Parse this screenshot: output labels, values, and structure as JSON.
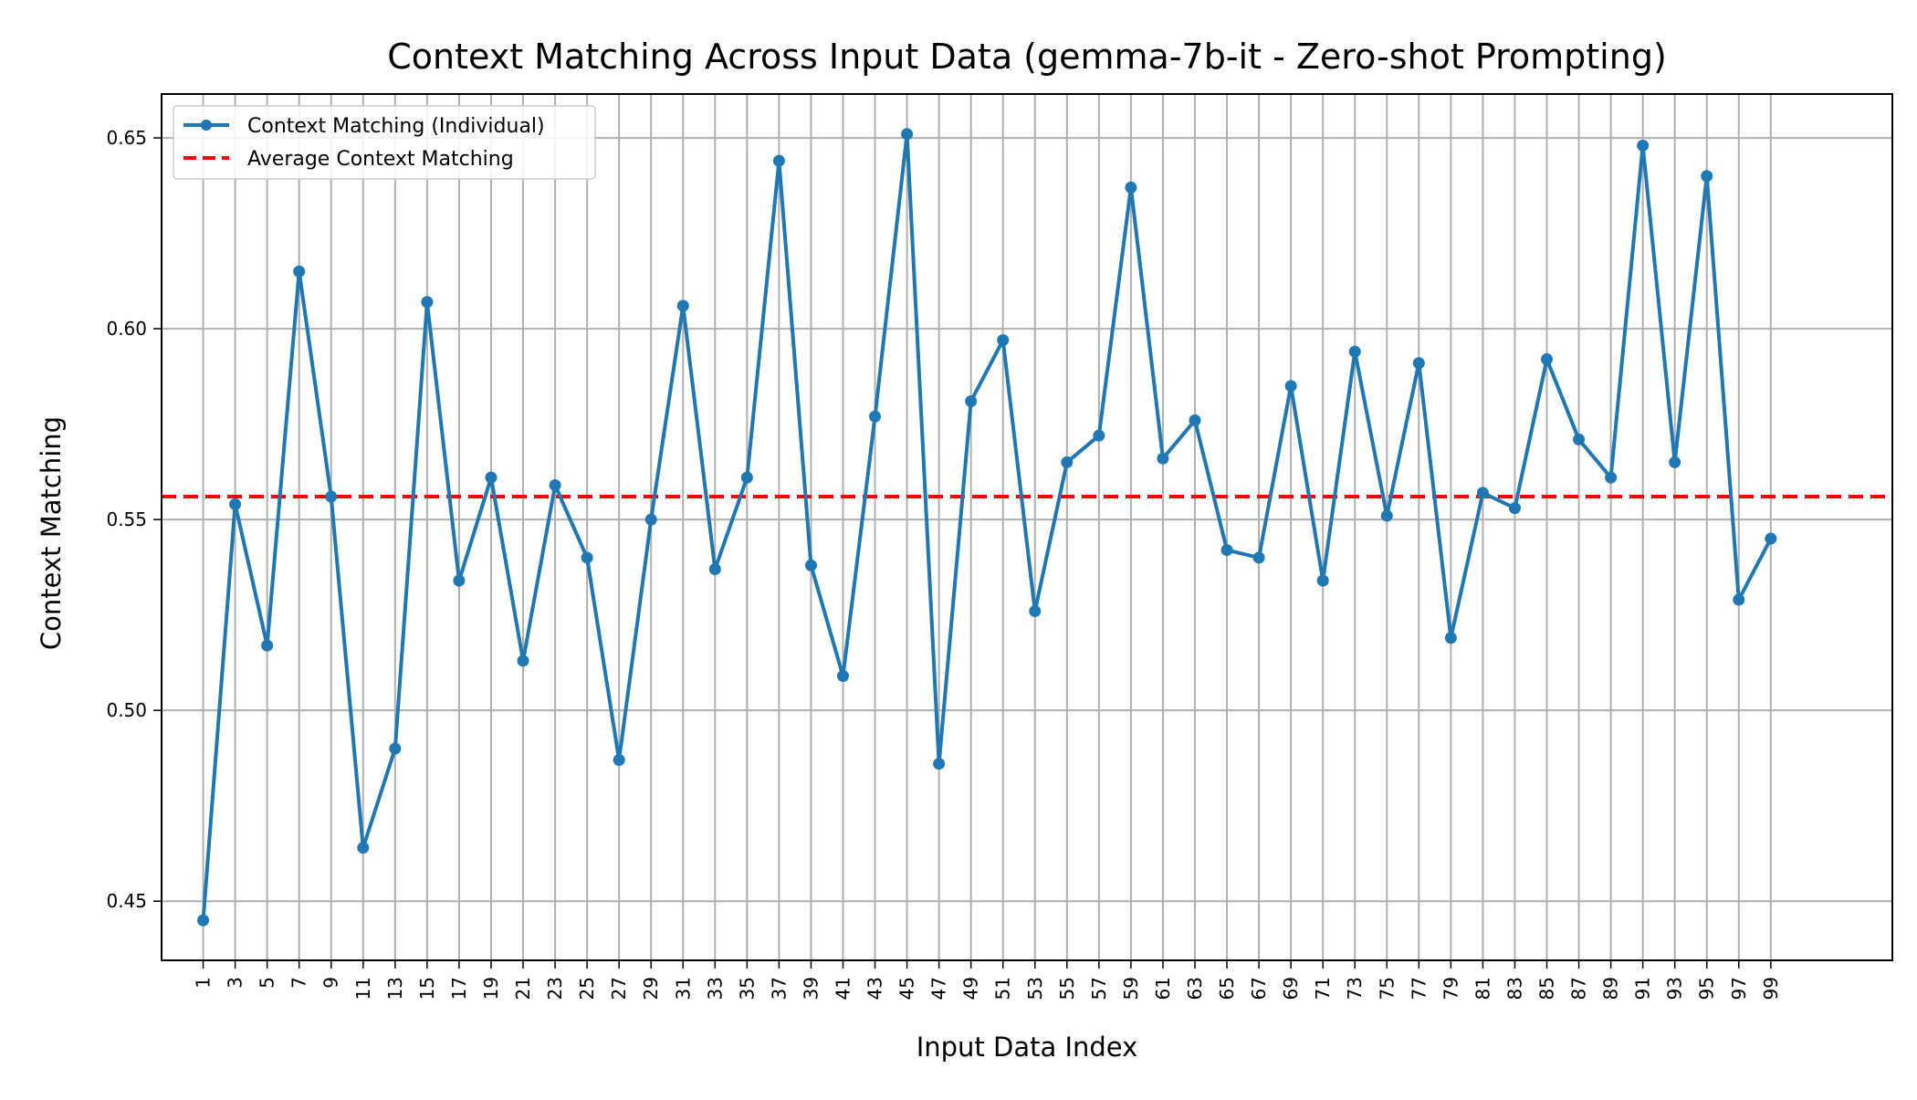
{
  "chart_data": {
    "type": "line",
    "title": "Context Matching Across Input Data (gemma-7b-it - Zero-shot Prompting)",
    "xlabel": "Input Data Index",
    "ylabel": "Context Matching",
    "xlim": [
      -1.6,
      106.6
    ],
    "ylim": [
      0.4345,
      0.6615
    ],
    "x_ticks": [
      1,
      3,
      5,
      7,
      9,
      11,
      13,
      15,
      17,
      19,
      21,
      23,
      25,
      27,
      29,
      31,
      33,
      35,
      37,
      39,
      41,
      43,
      45,
      47,
      49,
      51,
      53,
      55,
      57,
      59,
      61,
      63,
      65,
      67,
      69,
      71,
      73,
      75,
      77,
      79,
      81,
      83,
      85,
      87,
      89,
      91,
      93,
      95,
      97,
      99
    ],
    "y_ticks": [
      0.45,
      0.5,
      0.55,
      0.6,
      0.65
    ],
    "y_tick_labels": [
      "0.45",
      "0.50",
      "0.55",
      "0.60",
      "0.65"
    ],
    "grid": true,
    "legend_position": "top-left",
    "series": [
      {
        "name": "Context Matching (Individual)",
        "color": "#1f77b4",
        "style": "solid-with-markers",
        "x": [
          1,
          3,
          5,
          7,
          9,
          11,
          13,
          15,
          17,
          19,
          21,
          23,
          25,
          27,
          29,
          31,
          33,
          35,
          37,
          39,
          41,
          43,
          45,
          47,
          49,
          51,
          53,
          55,
          57,
          59,
          61,
          63,
          65,
          67,
          69,
          71,
          73,
          75,
          77,
          79,
          81,
          83,
          85,
          87,
          89,
          91,
          93,
          95,
          97,
          99
        ],
        "values": [
          0.445,
          0.554,
          0.517,
          0.615,
          0.556,
          0.464,
          0.49,
          0.607,
          0.534,
          0.561,
          0.513,
          0.559,
          0.54,
          0.487,
          0.55,
          0.606,
          0.537,
          0.561,
          0.644,
          0.538,
          0.509,
          0.577,
          0.651,
          0.486,
          0.581,
          0.597,
          0.526,
          0.565,
          0.572,
          0.637,
          0.566,
          0.576,
          0.542,
          0.54,
          0.585,
          0.534,
          0.594,
          0.551,
          0.591,
          0.519,
          0.557,
          0.553,
          0.592,
          0.571,
          0.561,
          0.648,
          0.565,
          0.64,
          0.529,
          0.545
        ]
      },
      {
        "name": "Average Context Matching",
        "color": "#ff0000",
        "style": "dashed",
        "value": 0.556
      }
    ]
  }
}
